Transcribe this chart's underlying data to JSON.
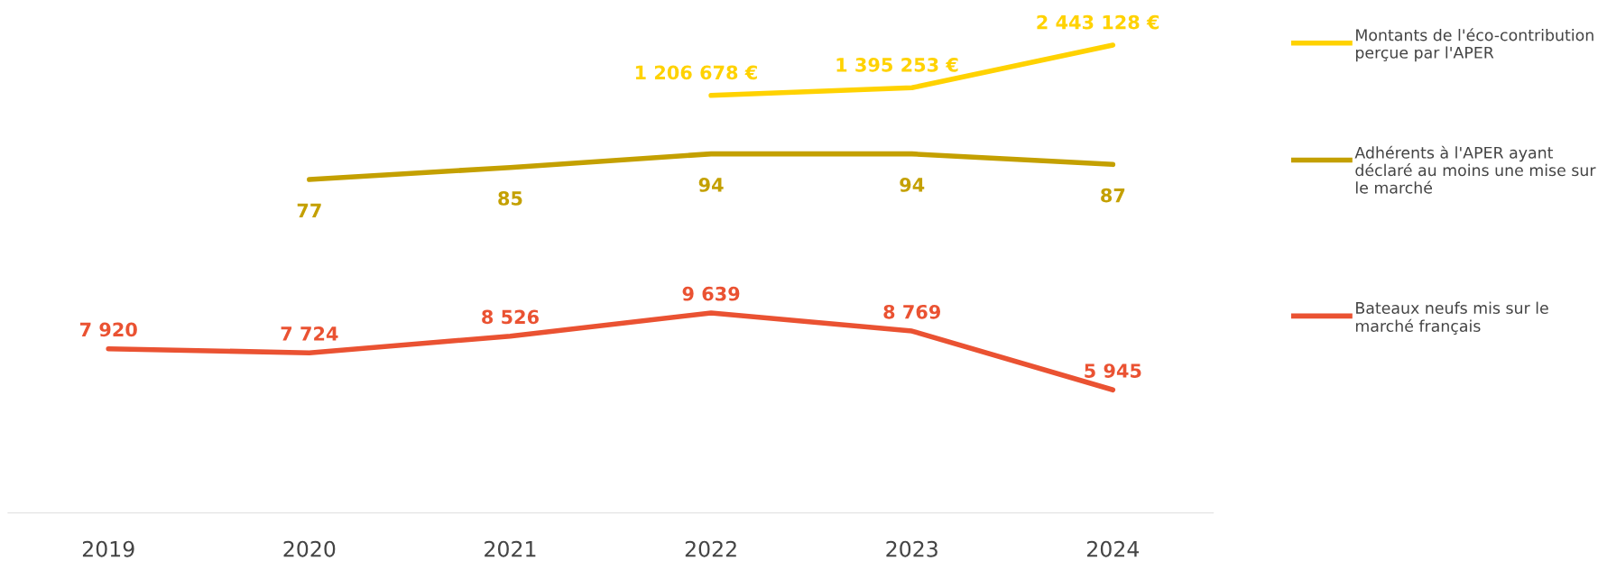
{
  "chart_data": [
    {
      "type": "line",
      "categories": [
        "2019",
        "2020",
        "2021",
        "2022",
        "2023",
        "2024"
      ],
      "tick_labels": false,
      "legend": "right",
      "marker": "none",
      "line_style": "solid",
      "series": [
        {
          "name": "Montants de l'éco-contribution perçue par l'APER",
          "color": "#ffd200",
          "values": [
            null,
            null,
            null,
            1206678,
            1395253,
            2443128
          ],
          "value_labels": [
            null,
            null,
            null,
            "1 206 678 €",
            "1 395 253 €",
            "2 443 128 €"
          ]
        }
      ]
    },
    {
      "type": "line",
      "categories": [
        "2019",
        "2020",
        "2021",
        "2022",
        "2023",
        "2024"
      ],
      "tick_labels": false,
      "legend": "right",
      "marker": "none",
      "line_style": "solid",
      "series": [
        {
          "name": "Adhérents à l'APER ayant déclaré au moins une mise sur le marché",
          "color": "#c4a000",
          "values": [
            null,
            77,
            85,
            94,
            94,
            87
          ],
          "value_labels": [
            null,
            "77",
            "85",
            "94",
            "94",
            "87"
          ]
        }
      ]
    },
    {
      "type": "line",
      "categories": [
        "2019",
        "2020",
        "2021",
        "2022",
        "2023",
        "2024"
      ],
      "tick_labels": "x",
      "legend": "right",
      "marker": "none",
      "line_style": "solid",
      "series": [
        {
          "name": "Bateaux neufs mis sur le marché français",
          "color": "#ea5232",
          "values": [
            7920,
            7724,
            8526,
            9639,
            8769,
            5945
          ],
          "value_labels": [
            "7 920",
            "7 724",
            "8 526",
            "9 639",
            "8 769",
            "5 945"
          ]
        }
      ]
    }
  ]
}
